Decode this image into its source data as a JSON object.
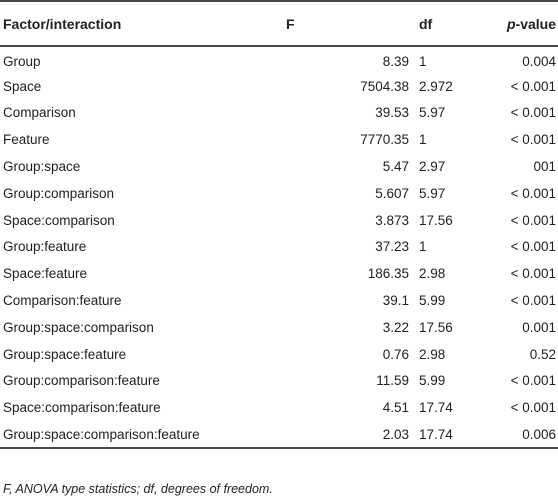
{
  "table": {
    "headers": {
      "factor": "Factor/interaction",
      "f": "F",
      "df": "df",
      "p_italic": "p",
      "p_rest": "-value"
    },
    "rows": [
      {
        "factor": "Group",
        "f": "8.39",
        "df": "1",
        "p": "0.004"
      },
      {
        "factor": "Space",
        "f": "7504.38",
        "df": "2.972",
        "p": "< 0.001"
      },
      {
        "factor": "Comparison",
        "f": "39.53",
        "df": "5.97",
        "p": "< 0.001"
      },
      {
        "factor": "Feature",
        "f": "7770.35",
        "df": "1",
        "p": "< 0.001"
      },
      {
        "factor": "Group:space",
        "f": "5.47",
        "df": "2.97",
        "p": "001"
      },
      {
        "factor": "Group:comparison",
        "f": "5.607",
        "df": "5.97",
        "p": "< 0.001"
      },
      {
        "factor": "Space:comparison",
        "f": "3.873",
        "df": "17.56",
        "p": "< 0.001"
      },
      {
        "factor": "Group:feature",
        "f": "37.23",
        "df": "1",
        "p": "< 0.001"
      },
      {
        "factor": "Space:feature",
        "f": "186.35",
        "df": "2.98",
        "p": "< 0.001"
      },
      {
        "factor": "Comparison:feature",
        "f": "39.1",
        "df": "5.99",
        "p": "< 0.001"
      },
      {
        "factor": "Group:space:comparison",
        "f": "3.22",
        "df": "17.56",
        "p": "0.001"
      },
      {
        "factor": "Group:space:feature",
        "f": "0.76",
        "df": "2.98",
        "p": "0.52"
      },
      {
        "factor": "Group:comparison:feature",
        "f": "11.59",
        "df": "5.99",
        "p": "< 0.001"
      },
      {
        "factor": "Space:comparison:feature",
        "f": "4.51",
        "df": "17.74",
        "p": "< 0.001"
      },
      {
        "factor": "Group:space:comparison:feature",
        "f": "2.03",
        "df": "17.74",
        "p": "0.006"
      }
    ]
  },
  "footnote": "F, ANOVA type statistics; df, degrees of freedom."
}
